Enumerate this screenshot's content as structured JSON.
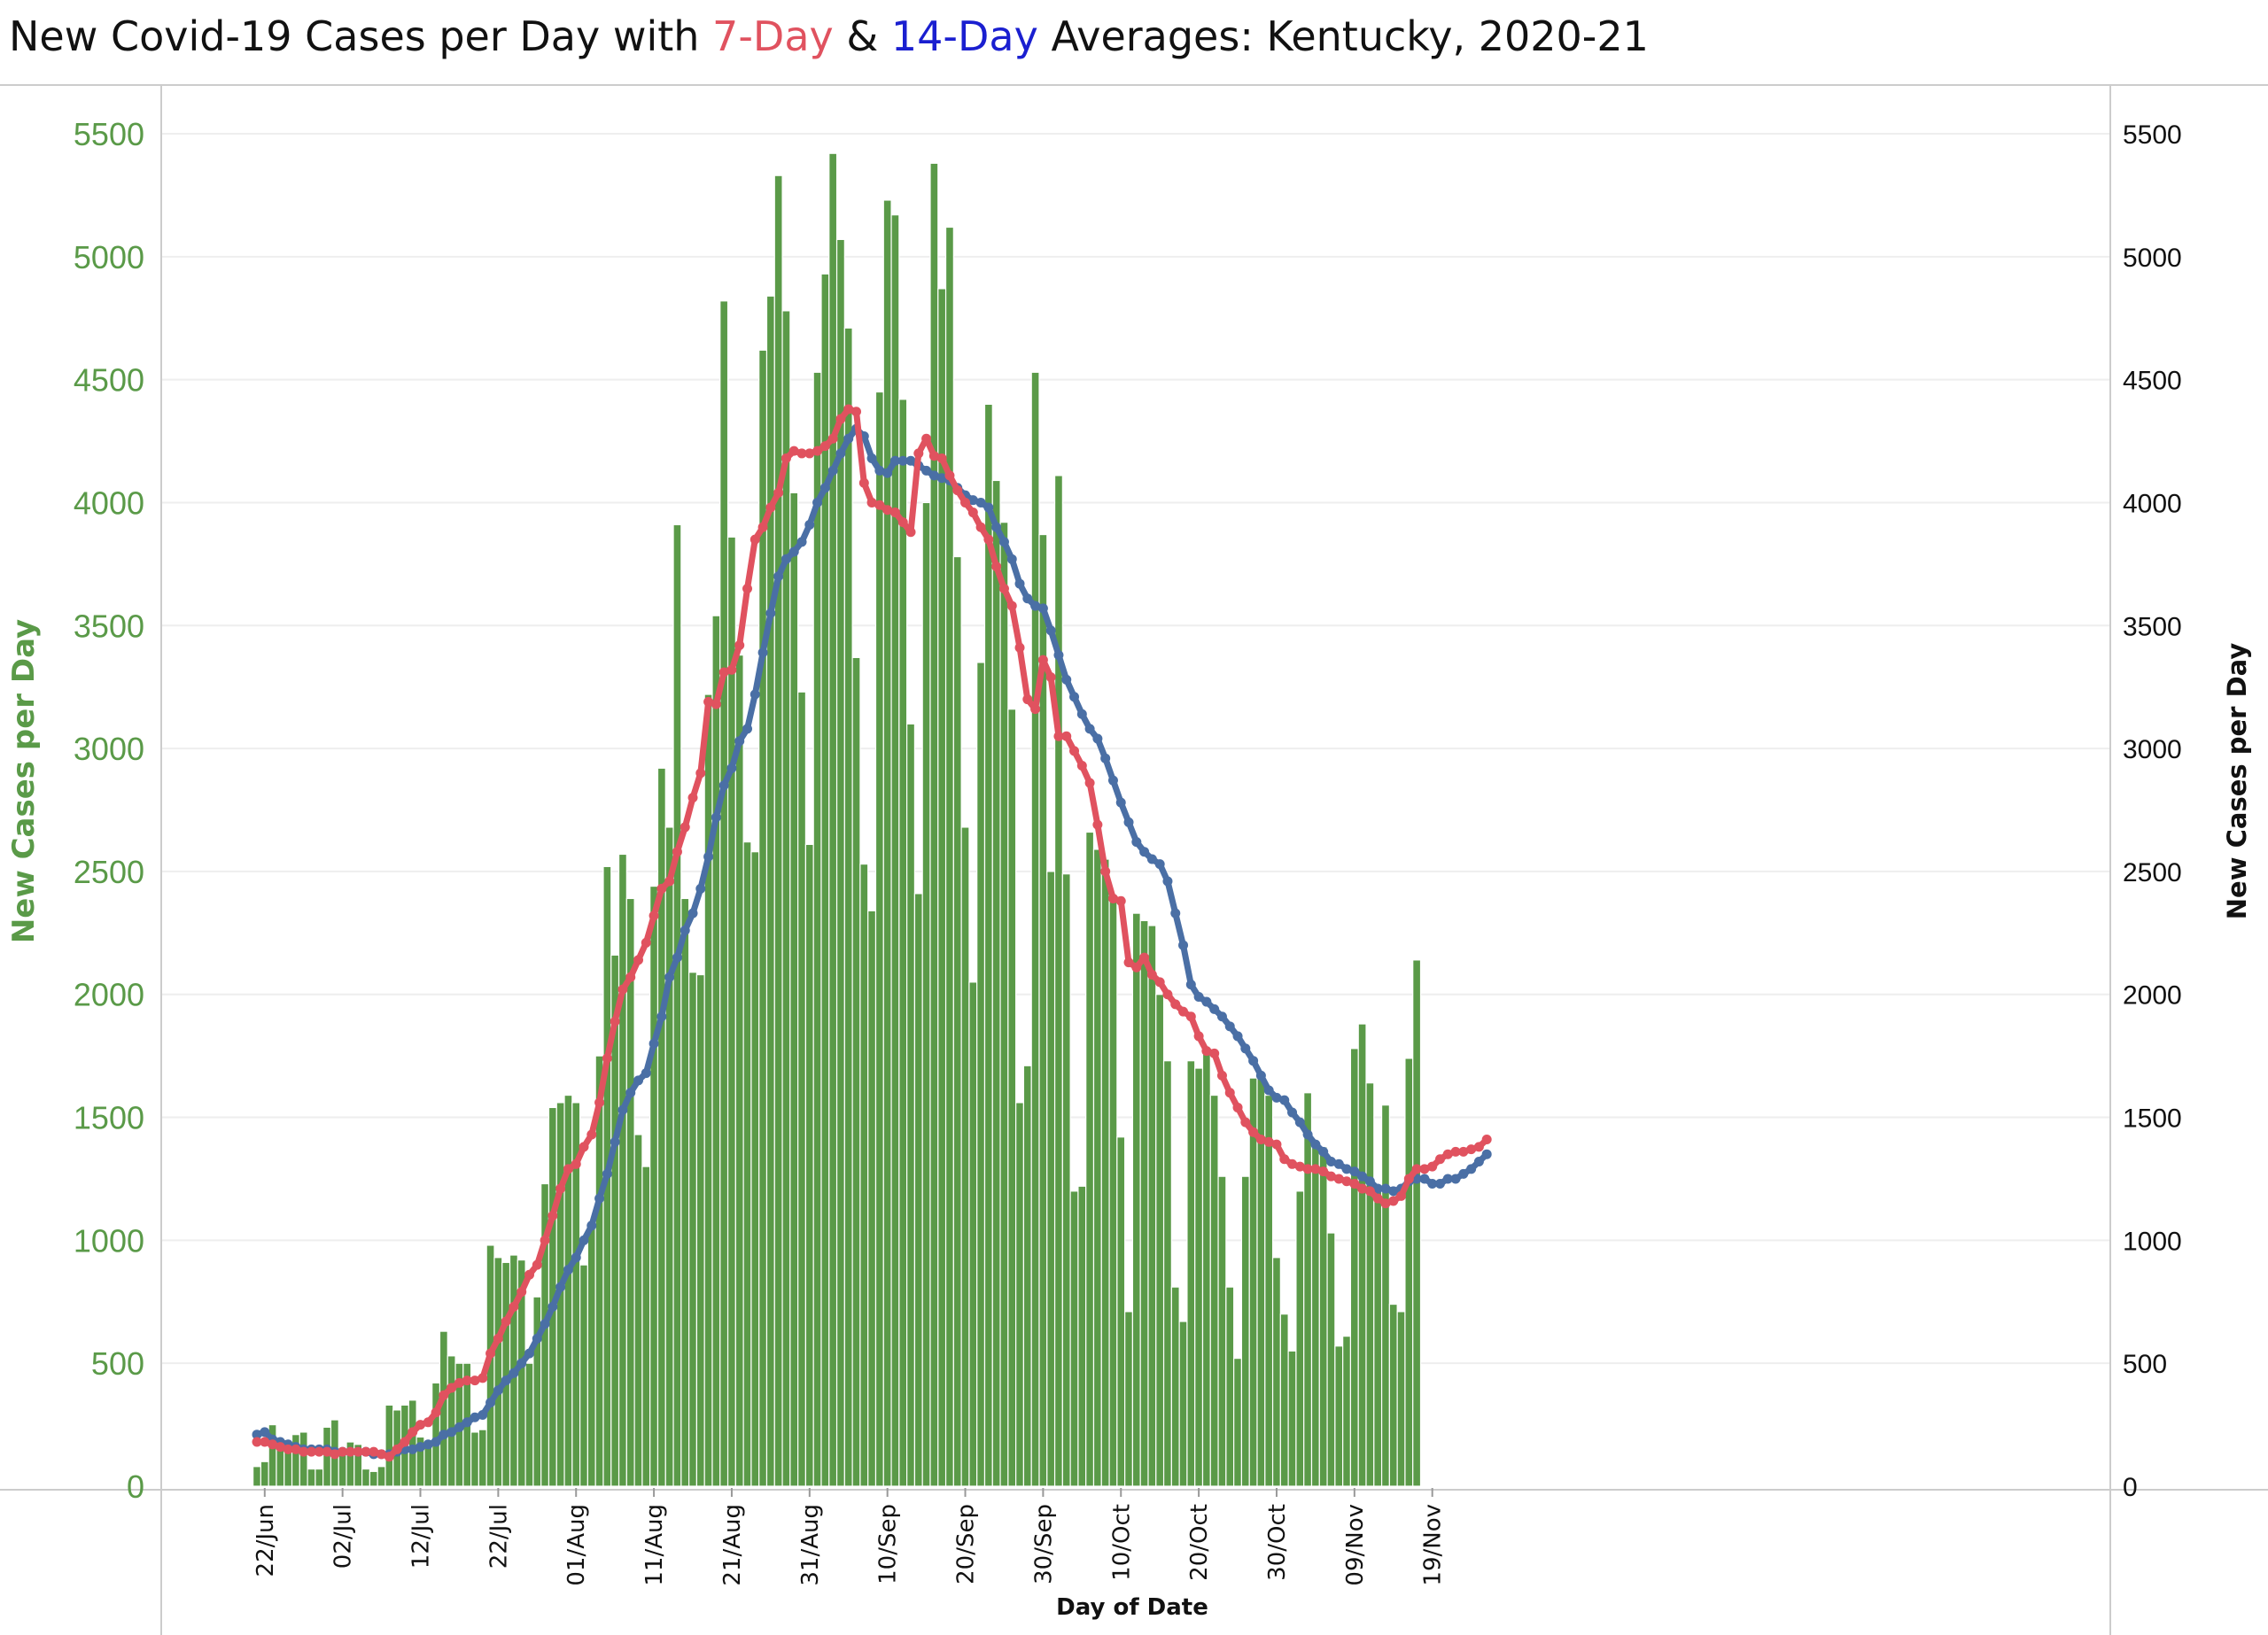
{
  "title": {
    "part1": "New Covid-19 Cases per Day with ",
    "seven_day": "7-Day",
    "amp": " & ",
    "fourteen_day": "14-Day",
    "part2": " Averages: Kentucky,  2020-21"
  },
  "colors": {
    "bars": "#5a9a48",
    "bar_border": "#ffffff",
    "avg7": "#e0525f",
    "avg14": "#4a6fa5",
    "left_axis_text": "#5a9a48",
    "title_text": "#111111",
    "gridline": "#eeeeee"
  },
  "chart_data": {
    "type": "bar",
    "x_label": "Day of Date",
    "y_label_left": "New Cases per Day",
    "y_label_right": "New Cases per Day",
    "ylim": [
      0,
      5500
    ],
    "y_ticks": [
      0,
      500,
      1000,
      1500,
      2000,
      2500,
      3000,
      3500,
      4000,
      4500,
      5000,
      5500
    ],
    "x_tick_labels": [
      "22/Jun",
      "02/Jul",
      "12/Jul",
      "22/Jul",
      "01/Aug",
      "11/Aug",
      "21/Aug",
      "31/Aug",
      "10/Sep",
      "20/Sep",
      "30/Sep",
      "10/Oct",
      "20/Oct",
      "30/Oct",
      "09/Nov",
      "19/Nov"
    ],
    "grid": true,
    "start_date": "2020-06-21",
    "series": [
      {
        "name": "New Cases per Day",
        "type": "bar",
        "values": [
          80,
          100,
          250,
          190,
          170,
          210,
          220,
          70,
          70,
          240,
          270,
          150,
          180,
          170,
          70,
          60,
          80,
          330,
          310,
          330,
          350,
          200,
          160,
          420,
          630,
          530,
          500,
          500,
          220,
          230,
          980,
          930,
          910,
          940,
          920,
          500,
          770,
          1230,
          1540,
          1560,
          1590,
          1560,
          900,
          1050,
          1750,
          2520,
          2160,
          2570,
          2390,
          1430,
          1300,
          2440,
          2920,
          2680,
          3910,
          2390,
          2090,
          2080,
          3220,
          3540,
          4820,
          3860,
          3380,
          2620,
          2580,
          4620,
          4840,
          5330,
          4780,
          4040,
          3230,
          2610,
          4530,
          4930,
          5420,
          5070,
          4710,
          3370,
          2530,
          2340,
          4450,
          5230,
          5170,
          4420,
          3100,
          2410,
          4000,
          5380,
          4870,
          5120,
          3780,
          2680,
          2050,
          3350,
          4400,
          4090,
          3920,
          3160,
          1560,
          1710,
          4530,
          3870,
          2500,
          4110,
          2490,
          1200,
          1220,
          2660,
          2590,
          2550,
          2390,
          1420,
          710,
          2330,
          2300,
          2280,
          2000,
          1730,
          810,
          670,
          1730,
          1700,
          1760,
          1590,
          1260,
          810,
          520,
          1260,
          1660,
          1670,
          1590,
          930,
          700,
          550,
          1200,
          1600,
          1390,
          1380,
          1030,
          570,
          610,
          1780,
          1880,
          1640,
          1210,
          1550,
          740,
          710,
          1740,
          2140
        ]
      },
      {
        "name": "7-Day",
        "type": "line",
        "values": [
          180,
          180,
          170,
          160,
          150,
          150,
          140,
          140,
          140,
          140,
          130,
          140,
          140,
          140,
          140,
          140,
          130,
          120,
          150,
          180,
          220,
          250,
          260,
          300,
          370,
          400,
          420,
          430,
          430,
          440,
          540,
          600,
          670,
          730,
          790,
          860,
          900,
          1000,
          1100,
          1210,
          1290,
          1310,
          1380,
          1430,
          1560,
          1740,
          1890,
          2020,
          2070,
          2140,
          2210,
          2320,
          2430,
          2460,
          2580,
          2680,
          2800,
          2900,
          3190,
          3180,
          3310,
          3320,
          3420,
          3650,
          3850,
          3900,
          3980,
          4040,
          4180,
          4210,
          4200,
          4200,
          4210,
          4230,
          4260,
          4340,
          4380,
          4370,
          4080,
          4000,
          3990,
          3970,
          3960,
          3920,
          3880,
          4200,
          4260,
          4190,
          4180,
          4110,
          4050,
          4000,
          3960,
          3900,
          3850,
          3740,
          3650,
          3580,
          3410,
          3200,
          3160,
          3360,
          3290,
          3050,
          3050,
          2990,
          2930,
          2860,
          2690,
          2500,
          2390,
          2380,
          2130,
          2110,
          2150,
          2080,
          2050,
          2000,
          1960,
          1930,
          1910,
          1830,
          1770,
          1760,
          1670,
          1600,
          1540,
          1480,
          1440,
          1410,
          1400,
          1390,
          1330,
          1310,
          1300,
          1290,
          1290,
          1280,
          1260,
          1250,
          1240,
          1230,
          1210,
          1200,
          1170,
          1150,
          1160,
          1180,
          1250,
          1290,
          1290,
          1300,
          1330,
          1350,
          1360,
          1360,
          1370,
          1380,
          1410
        ]
      },
      {
        "name": "14-Day",
        "type": "line",
        "values": [
          210,
          220,
          190,
          180,
          170,
          160,
          150,
          150,
          150,
          150,
          140,
          140,
          140,
          140,
          140,
          130,
          130,
          130,
          140,
          150,
          150,
          160,
          170,
          180,
          210,
          220,
          240,
          260,
          280,
          290,
          340,
          390,
          430,
          460,
          500,
          540,
          600,
          660,
          730,
          810,
          880,
          930,
          1000,
          1060,
          1170,
          1270,
          1400,
          1530,
          1600,
          1650,
          1680,
          1800,
          1910,
          2070,
          2150,
          2260,
          2330,
          2430,
          2560,
          2720,
          2850,
          2920,
          3030,
          3080,
          3220,
          3390,
          3550,
          3700,
          3770,
          3800,
          3840,
          3910,
          4000,
          4060,
          4130,
          4200,
          4260,
          4300,
          4270,
          4180,
          4130,
          4120,
          4170,
          4170,
          4170,
          4150,
          4130,
          4110,
          4100,
          4090,
          4060,
          4030,
          4010,
          4000,
          3980,
          3900,
          3840,
          3770,
          3670,
          3610,
          3580,
          3570,
          3480,
          3380,
          3280,
          3210,
          3140,
          3080,
          3040,
          2960,
          2870,
          2780,
          2700,
          2620,
          2580,
          2550,
          2530,
          2460,
          2330,
          2200,
          2040,
          1990,
          1970,
          1940,
          1910,
          1870,
          1830,
          1780,
          1730,
          1670,
          1610,
          1580,
          1570,
          1520,
          1480,
          1430,
          1390,
          1360,
          1320,
          1310,
          1290,
          1280,
          1260,
          1240,
          1210,
          1210,
          1200,
          1210,
          1240,
          1250,
          1250,
          1230,
          1230,
          1250,
          1250,
          1270,
          1290,
          1320,
          1350
        ]
      }
    ]
  }
}
